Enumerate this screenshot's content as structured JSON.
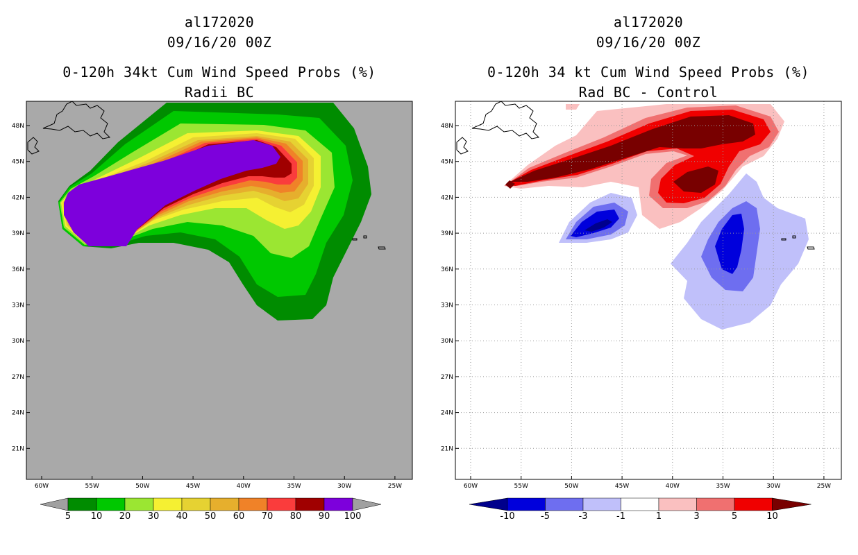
{
  "left_panel": {
    "storm_id": "al172020",
    "datetime": "09/16/20 00Z",
    "title": "0-120h 34kt Cum Wind Speed Probs (%)",
    "subtitle": "Radii BC",
    "background_color": "#a9a9a9",
    "colorbar": {
      "labels": [
        "5",
        "10",
        "20",
        "30",
        "40",
        "50",
        "60",
        "70",
        "80",
        "90",
        "100"
      ],
      "colors": [
        "#008c00",
        "#00c800",
        "#9be632",
        "#f5f032",
        "#e6d232",
        "#e6af2d",
        "#f08228",
        "#fa3c3c",
        "#a00000",
        "#7d00dc"
      ],
      "end_color": "#a0a0a0"
    }
  },
  "right_panel": {
    "storm_id": "al172020",
    "datetime": "09/16/20 00Z",
    "title": "0-120h 34 kt Cum Wind Speed Probs (%)",
    "subtitle": "Rad BC - Control",
    "background_color": "#ffffff",
    "colorbar": {
      "labels": [
        "-10",
        "-5",
        "-3",
        "-1",
        "1",
        "3",
        "5",
        "10"
      ],
      "colors": [
        "#0000dc",
        "#6e6ef0",
        "#c0c0fa",
        "#ffffff",
        "#fac0c0",
        "#f07070",
        "#f00000"
      ],
      "left_end_color": "#00008c",
      "right_end_color": "#780000"
    }
  },
  "axes": {
    "x_labels": [
      "60W",
      "55W",
      "50W",
      "45W",
      "40W",
      "35W",
      "30W",
      "25W"
    ],
    "y_labels": [
      "48N",
      "45N",
      "42N",
      "39N",
      "36N",
      "33N",
      "30N",
      "27N",
      "24N",
      "21N"
    ]
  }
}
